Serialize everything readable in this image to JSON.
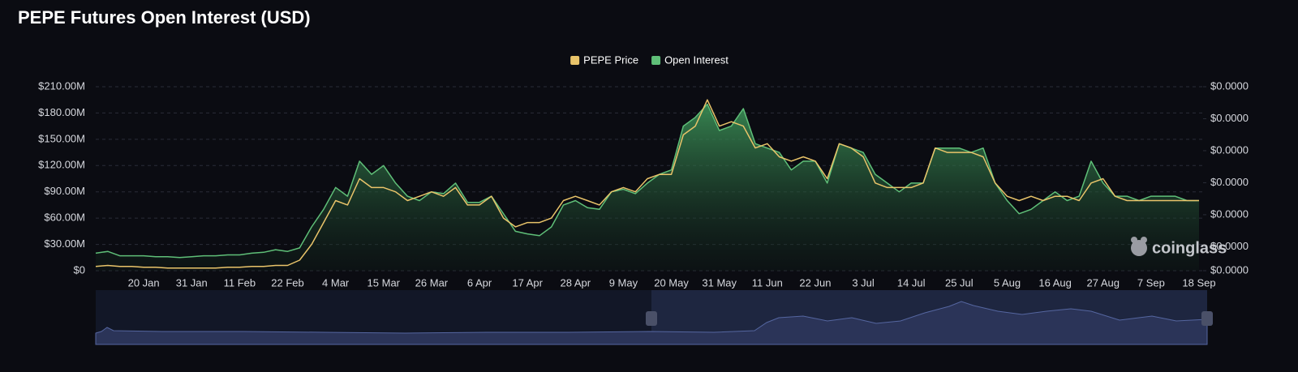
{
  "chart_data": {
    "type": "line",
    "title": "PEPE Futures Open Interest (USD)",
    "watermark": "coinglass",
    "categories": [
      null,
      null,
      null,
      null,
      "20 Jan",
      null,
      null,
      null,
      "31 Jan",
      null,
      null,
      null,
      "11 Feb",
      null,
      null,
      null,
      "22 Feb",
      null,
      null,
      null,
      "4 Mar",
      null,
      null,
      null,
      "15 Mar",
      null,
      null,
      null,
      "26 Mar",
      null,
      null,
      null,
      "6 Apr",
      null,
      null,
      null,
      "17 Apr",
      null,
      null,
      null,
      "28 Apr",
      null,
      null,
      null,
      "9 May",
      null,
      null,
      null,
      "20 May",
      null,
      null,
      null,
      "31 May",
      null,
      null,
      null,
      "11 Jun",
      null,
      null,
      null,
      "22 Jun",
      null,
      null,
      null,
      "3 Jul",
      null,
      null,
      null,
      "14 Jul",
      null,
      null,
      null,
      "25 Jul",
      null,
      null,
      null,
      "5 Aug",
      null,
      null,
      null,
      "16 Aug",
      null,
      null,
      null,
      "27 Aug",
      null,
      null,
      null,
      "7 Sep",
      null,
      null,
      null,
      "18 Sep"
    ],
    "series": [
      {
        "name": "PEPE Price",
        "color": "#e9c46a",
        "axis": "y2",
        "values": [
          7.7e-07,
          8.3e-07,
          7.7e-07,
          7.7e-07,
          7.2e-07,
          7.2e-07,
          6.6e-07,
          6.6e-07,
          6.6e-07,
          6.6e-07,
          6.6e-07,
          7.2e-07,
          7.2e-07,
          7.7e-07,
          7.7e-07,
          8.3e-07,
          8.3e-07,
          1.16e-06,
          2.14e-06,
          3.51e-06,
          4.88e-06,
          4.61e-06,
          6.25e-06,
          5.7e-06,
          5.7e-06,
          5.43e-06,
          4.88e-06,
          5.15e-06,
          5.43e-06,
          5.15e-06,
          5.7e-06,
          4.61e-06,
          4.61e-06,
          5.15e-06,
          3.79e-06,
          3.24e-06,
          3.51e-06,
          3.51e-06,
          3.79e-06,
          4.88e-06,
          5.15e-06,
          4.88e-06,
          4.61e-06,
          5.43e-06,
          5.7e-06,
          5.43e-06,
          6.25e-06,
          6.52e-06,
          6.52e-06,
          8.99e-06,
          9.54e-06,
          1.118e-05,
          9.54e-06,
          9.81e-06,
          9.54e-06,
          8.17e-06,
          8.44e-06,
          7.62e-06,
          7.35e-06,
          7.62e-06,
          7.35e-06,
          6.25e-06,
          8.44e-06,
          8.17e-06,
          7.62e-06,
          5.98e-06,
          5.7e-06,
          5.7e-06,
          5.7e-06,
          5.98e-06,
          8.17e-06,
          7.89e-06,
          7.89e-06,
          7.89e-06,
          7.62e-06,
          5.98e-06,
          5.15e-06,
          4.88e-06,
          5.15e-06,
          4.88e-06,
          5.15e-06,
          5.15e-06,
          4.88e-06,
          5.98e-06,
          6.25e-06,
          5.15e-06,
          4.88e-06,
          4.88e-06,
          4.88e-06,
          4.88e-06,
          4.88e-06,
          4.88e-06,
          4.88e-06
        ]
      },
      {
        "name": "Open Interest",
        "color": "#5fbf78",
        "values": [
          20000000.0,
          22000000.0,
          17000000.0,
          17000000.0,
          17000000.0,
          16000000.0,
          16000000.0,
          15000000.0,
          16000000.0,
          17000000.0,
          17000000.0,
          18000000.0,
          18000000.0,
          20000000.0,
          21000000.0,
          24000000.0,
          22000000.0,
          26000000.0,
          50000000.0,
          70000000.0,
          95000000.0,
          85000000.0,
          125000000.0,
          110000000.0,
          120000000.0,
          100000000.0,
          85000000.0,
          80000000.0,
          90000000.0,
          88000000.0,
          100000000.0,
          78000000.0,
          78000000.0,
          85000000.0,
          65000000.0,
          45000000.0,
          42000000.0,
          40000000.0,
          50000000.0,
          75000000.0,
          80000000.0,
          72000000.0,
          70000000.0,
          90000000.0,
          93000000.0,
          88000000.0,
          100000000.0,
          110000000.0,
          115000000.0,
          165000000.0,
          175000000.0,
          190000000.0,
          160000000.0,
          165000000.0,
          185000000.0,
          145000000.0,
          140000000.0,
          135000000.0,
          115000000.0,
          125000000.0,
          125000000.0,
          100000000.0,
          145000000.0,
          140000000.0,
          135000000.0,
          110000000.0,
          100000000.0,
          90000000.0,
          100000000.0,
          100000000.0,
          140000000.0,
          140000000.0,
          140000000.0,
          135000000.0,
          140000000.0,
          100000000.0,
          80000000.0,
          65000000.0,
          70000000.0,
          80000000.0,
          90000000.0,
          80000000.0,
          85000000.0,
          125000000.0,
          100000000.0,
          85000000.0,
          85000000.0,
          80000000.0,
          85000000.0,
          85000000.0,
          85000000.0,
          80000000.0,
          80000000.0
        ]
      }
    ],
    "ylim": [
      0,
      210000000.0
    ],
    "yticks": [
      {
        "value": 0,
        "label": "$0"
      },
      {
        "value": 30000000.0,
        "label": "$30.00M"
      },
      {
        "value": 60000000.0,
        "label": "$60.00M"
      },
      {
        "value": 90000000.0,
        "label": "$90.00M"
      },
      {
        "value": 120000000.0,
        "label": "$120.00M"
      },
      {
        "value": 150000000.0,
        "label": "$150.00M"
      },
      {
        "value": 180000000.0,
        "label": "$180.00M"
      },
      {
        "value": 210000000.0,
        "label": "$210.00M"
      }
    ],
    "y2lim": [
      5e-07,
      1.2e-05
    ],
    "y2ticks": [
      {
        "value": 5e-07,
        "label": "$0.0000"
      },
      {
        "value": 2e-06,
        "label": "$0.0000"
      },
      {
        "value": 4e-06,
        "label": "$0.0000"
      },
      {
        "value": 6e-06,
        "label": "$0.0000"
      },
      {
        "value": 8e-06,
        "label": "$0.0000"
      },
      {
        "value": 1e-05,
        "label": "$0.0000"
      },
      {
        "value": 1.2e-05,
        "label": "$0.0000"
      }
    ],
    "grid": true
  }
}
